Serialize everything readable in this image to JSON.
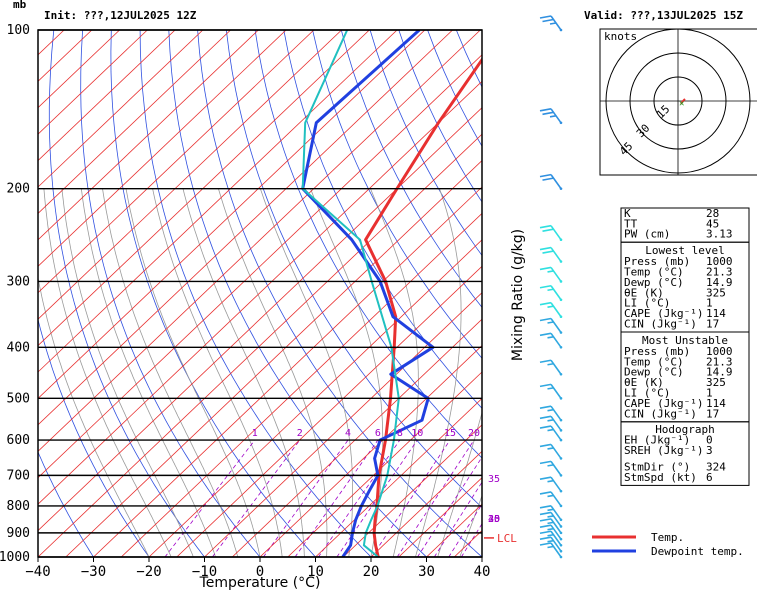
{
  "header": {
    "init": "Init: ???,12JUL2025  12Z",
    "valid": "Valid: ???,13JUL2025  15Z",
    "pressure_unit": "mb"
  },
  "chart_data": {
    "type": "line",
    "xlabel": "Temperature (°C)",
    "ylabel_right": "Mixing Ratio (g/kg)",
    "xlim": [
      -40,
      40
    ],
    "ylim": [
      1000,
      100
    ],
    "x_ticks": [
      -40,
      -30,
      -20,
      -10,
      0,
      10,
      20,
      30,
      40
    ],
    "x_tick_labels": [
      "−40",
      "−30",
      "−20",
      "−10",
      "0",
      "10",
      "20",
      "30",
      "40"
    ],
    "p_ticks": [
      100,
      200,
      300,
      400,
      500,
      600,
      700,
      800,
      900,
      1000
    ],
    "p_tick_labels": [
      "100",
      "200",
      "300",
      "400",
      "500",
      "600",
      "700",
      "800",
      "900",
      "1000"
    ],
    "mixing_ratio_lines": [
      1,
      2,
      4,
      6,
      8,
      10,
      15,
      20,
      25,
      30,
      35,
      40
    ],
    "mixing_ratio_labels": [
      "1",
      "2",
      "4",
      "6",
      "8",
      "10",
      "15",
      "20",
      "25",
      "30",
      "35",
      "40"
    ],
    "series": [
      {
        "name": "Temp.",
        "color": "#e83030",
        "p": [
          1000,
          950,
          900,
          850,
          800,
          700,
          600,
          500,
          400,
          350,
          300,
          250,
          200,
          150,
          100
        ],
        "t": [
          21.3,
          18.6,
          16.0,
          13.7,
          11.4,
          6.0,
          0.5,
          -6.5,
          -15.5,
          -21.0,
          -29.5,
          -41.0,
          -45.0,
          -50.0,
          -56.0
        ]
      },
      {
        "name": "Dewpoint temp.",
        "color": "#2040e0",
        "p": [
          1000,
          950,
          900,
          850,
          800,
          750,
          700,
          650,
          600,
          550,
          500,
          450,
          400,
          350,
          300,
          250,
          200,
          150,
          100
        ],
        "t": [
          14.9,
          14.1,
          12.1,
          10.2,
          8.6,
          7.2,
          5.8,
          2.0,
          -0.5,
          3.3,
          0.3,
          -11.0,
          -8.5,
          -21.5,
          -30.5,
          -43.5,
          -62.0,
          -72.0,
          -71.0
        ]
      },
      {
        "color": "#20c0c0",
        "p": [
          1000,
          950,
          900,
          850,
          800,
          700,
          600,
          500,
          400,
          300,
          250,
          200,
          150,
          100
        ],
        "t": [
          21.3,
          16.5,
          14.5,
          13.0,
          11.5,
          7.5,
          2.0,
          -5.0,
          -16.0,
          -32.0,
          -42.0,
          -62.0,
          -74.0,
          -84.0
        ]
      }
    ],
    "lcl": {
      "label": "LCL",
      "p": 920
    },
    "wind_barbs": {
      "p": [
        100,
        150,
        200,
        250,
        275,
        300,
        325,
        350,
        375,
        400,
        450,
        500,
        550,
        575,
        600,
        650,
        700,
        750,
        800,
        850,
        875,
        900,
        925,
        950,
        975,
        1000
      ],
      "speed_kt": [
        25,
        25,
        20,
        20,
        20,
        15,
        15,
        15,
        15,
        15,
        15,
        15,
        15,
        15,
        15,
        15,
        15,
        15,
        15,
        15,
        15,
        15,
        15,
        15,
        15,
        15
      ]
    },
    "legend": {
      "position": "bottom-right",
      "items": [
        "Temp.",
        "Dewpoint temp."
      ]
    }
  },
  "hodograph": {
    "title": "knots",
    "ring_labels": [
      "15",
      "30",
      "45"
    ]
  },
  "indices": {
    "top": [
      {
        "label": "K",
        "value": "28"
      },
      {
        "label": "TT",
        "value": "45"
      },
      {
        "label": "PW (cm)",
        "value": "3.13"
      }
    ],
    "lowest_title": "Lowest level",
    "lowest": [
      {
        "label": "Press (mb)",
        "value": "1000"
      },
      {
        "label": "Temp (°C)",
        "value": "21.3"
      },
      {
        "label": "Dewp (°C)",
        "value": "14.9"
      },
      {
        "label": "θE (K)",
        "value": "325"
      },
      {
        "label": "LI (°C)",
        "value": "1"
      },
      {
        "label": "CAPE (Jkg⁻¹)",
        "value": "114"
      },
      {
        "label": "CIN (Jkg⁻¹)",
        "value": "17"
      }
    ],
    "unstable_title": "Most Unstable",
    "unstable": [
      {
        "label": "Press (mb)",
        "value": "1000"
      },
      {
        "label": "Temp (°C)",
        "value": "21.3"
      },
      {
        "label": "Dewp (°C)",
        "value": "14.9"
      },
      {
        "label": "θE (K)",
        "value": "325"
      },
      {
        "label": "LI (°C)",
        "value": "1"
      },
      {
        "label": "CAPE (Jkg⁻¹)",
        "value": "114"
      },
      {
        "label": "CIN (Jkg⁻¹)",
        "value": "17"
      }
    ],
    "hodo_title": "Hodograph",
    "hodo": [
      {
        "label": "EH (Jkg⁻¹)",
        "value": "0"
      },
      {
        "label": "SREH (Jkg⁻¹)",
        "value": "3"
      }
    ],
    "storm": [
      {
        "label": "StmDir (°)",
        "value": "324"
      },
      {
        "label": "StmSpd (kt)",
        "value": "6"
      }
    ]
  }
}
